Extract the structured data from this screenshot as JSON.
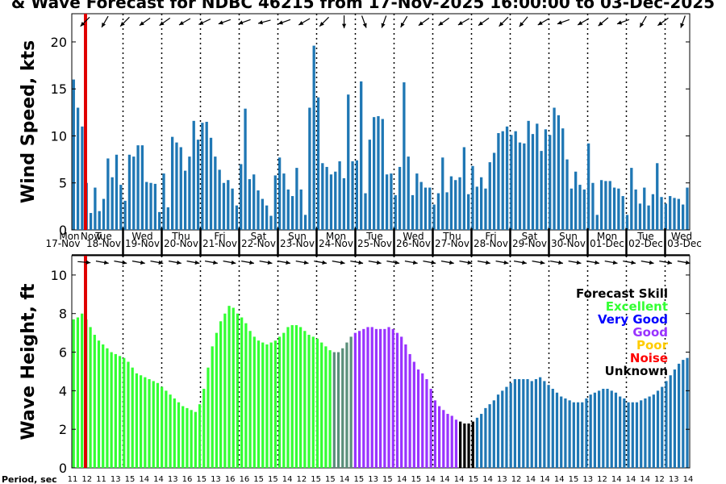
{
  "chart_data": {
    "title": "& Wave Forecast for NDBC 46215 from 17-Nov-2025 16:00:00 to 03-Dec-2025",
    "colors": {
      "wind_bar": "#1f77b4",
      "now_line": "#e00000",
      "now_text": "#e00000",
      "excellent": "#33ff33",
      "very_good": "#0000ff",
      "good": "#9933ff",
      "poor": "#ffcc00",
      "noise": "#ff0000",
      "unknown": "#000000",
      "transition": "#5a8f7a"
    },
    "panels": [
      {
        "type": "bar",
        "ylabel": "Wind Speed, kts",
        "ylim": [
          0,
          23
        ],
        "yticks": [
          "0",
          "5",
          "10",
          "15",
          "20"
        ],
        "values": [
          16.0,
          13.0,
          11.0,
          5.0,
          1.8,
          4.5,
          2.0,
          3.3,
          7.6,
          5.6,
          8.0,
          4.8,
          3.1,
          8.0,
          7.8,
          9.0,
          9.0,
          5.1,
          5.0,
          4.9,
          1.9,
          6.0,
          2.4,
          9.9,
          9.3,
          8.8,
          6.3,
          7.8,
          11.6,
          9.6,
          11.4,
          11.5,
          9.8,
          7.8,
          6.4,
          5.0,
          5.3,
          4.4,
          2.6,
          7.0,
          12.9,
          5.4,
          5.9,
          4.2,
          3.3,
          2.6,
          1.5,
          5.8,
          7.7,
          6.0,
          4.3,
          3.6,
          6.6,
          4.3,
          1.6,
          13.0,
          19.6,
          14.1,
          7.1,
          6.7,
          5.9,
          6.2,
          7.3,
          5.5,
          14.4,
          7.3,
          7.4,
          15.8,
          3.9,
          9.6,
          12.0,
          12.1,
          11.8,
          5.9,
          6.0,
          3.7,
          6.7,
          15.7,
          7.8,
          3.7,
          6.0,
          5.1,
          4.5,
          4.5,
          2.7,
          3.9,
          7.7,
          4.0,
          5.7,
          5.3,
          5.6,
          8.8,
          3.8,
          6.8,
          4.6,
          5.6,
          4.4,
          7.2,
          8.2,
          10.3,
          10.5,
          11.0,
          10.1,
          10.5,
          9.3,
          9.2,
          11.6,
          10.2,
          11.3,
          8.4,
          10.7,
          10.1,
          13.0,
          12.2,
          10.8,
          7.5,
          4.4,
          6.2,
          4.8,
          4.3,
          9.2,
          5.0,
          1.6,
          5.3,
          5.2,
          5.2,
          4.5,
          4.4,
          3.6,
          1.6,
          6.6,
          4.3,
          2.8,
          4.5,
          2.6,
          3.8,
          7.1,
          3.5,
          2.8,
          3.6,
          3.4,
          3.3,
          2.7,
          4.5
        ]
      },
      {
        "type": "bar",
        "ylabel": "Wave Height, ft",
        "ylim": [
          0,
          11
        ],
        "yticks": [
          "0",
          "2",
          "4",
          "6",
          "8",
          "10"
        ],
        "values": [
          7.7,
          7.8,
          8.0,
          7.7,
          7.3,
          6.9,
          6.6,
          6.4,
          6.2,
          6.0,
          5.9,
          5.8,
          5.7,
          5.5,
          5.2,
          4.9,
          4.8,
          4.7,
          4.6,
          4.5,
          4.4,
          4.2,
          4.0,
          3.8,
          3.6,
          3.4,
          3.2,
          3.1,
          3.0,
          2.9,
          3.3,
          4.1,
          5.2,
          6.3,
          7.0,
          7.6,
          8.0,
          8.4,
          8.3,
          8.0,
          7.8,
          7.5,
          7.1,
          6.8,
          6.6,
          6.5,
          6.4,
          6.5,
          6.6,
          6.8,
          7.0,
          7.3,
          7.4,
          7.4,
          7.3,
          7.1,
          6.9,
          6.8,
          6.7,
          6.5,
          6.3,
          6.1,
          6.0,
          6.0,
          6.2,
          6.5,
          6.8,
          7.0,
          7.1,
          7.2,
          7.3,
          7.3,
          7.2,
          7.2,
          7.2,
          7.3,
          7.2,
          7.0,
          6.8,
          6.4,
          5.9,
          5.5,
          5.1,
          4.9,
          4.6,
          4.1,
          3.5,
          3.2,
          3.0,
          2.8,
          2.7,
          2.5,
          2.4,
          2.3,
          2.3,
          2.4,
          2.6,
          2.8,
          3.1,
          3.3,
          3.5,
          3.8,
          4.0,
          4.2,
          4.4,
          4.6,
          4.6,
          4.6,
          4.6,
          4.5,
          4.6,
          4.7,
          4.5,
          4.3,
          4.1,
          3.9,
          3.7,
          3.6,
          3.5,
          3.4,
          3.4,
          3.4,
          3.6,
          3.8,
          3.9,
          4.0,
          4.1,
          4.1,
          4.0,
          3.9,
          3.7,
          3.6,
          3.4,
          3.4,
          3.4,
          3.5,
          3.6,
          3.7,
          3.8,
          4.0,
          4.2,
          4.5,
          4.8,
          5.1,
          5.4,
          5.6,
          5.7
        ],
        "quality": [
          "e",
          "e",
          "e",
          "e",
          "e",
          "e",
          "e",
          "e",
          "e",
          "e",
          "e",
          "e",
          "e",
          "e",
          "e",
          "e",
          "e",
          "e",
          "e",
          "e",
          "e",
          "e",
          "e",
          "e",
          "e",
          "e",
          "e",
          "e",
          "e",
          "e",
          "e",
          "e",
          "e",
          "e",
          "e",
          "e",
          "e",
          "e",
          "e",
          "e",
          "e",
          "e",
          "e",
          "e",
          "e",
          "e",
          "e",
          "e",
          "e",
          "e",
          "e",
          "e",
          "e",
          "e",
          "e",
          "e",
          "e",
          "e",
          "e",
          "e",
          "e",
          "e",
          "t",
          "t",
          "t",
          "t",
          "t",
          "g",
          "g",
          "g",
          "g",
          "g",
          "g",
          "g",
          "g",
          "g",
          "g",
          "g",
          "g",
          "g",
          "g",
          "g",
          "g",
          "g",
          "g",
          "g",
          "g",
          "g",
          "g",
          "g",
          "g",
          "g",
          "u",
          "u",
          "u",
          "u",
          "b",
          "b",
          "b",
          "b",
          "b",
          "b",
          "b",
          "b",
          "b",
          "b",
          "b",
          "b",
          "b",
          "b",
          "b",
          "b",
          "b",
          "b",
          "b",
          "b",
          "b",
          "b",
          "b",
          "b",
          "b",
          "b",
          "b",
          "b",
          "b",
          "b",
          "b",
          "b",
          "b",
          "b",
          "b",
          "b",
          "b",
          "b",
          "b",
          "b",
          "b",
          "b",
          "b",
          "b",
          "b",
          "b",
          "b",
          "b",
          "b",
          "b",
          "b",
          "b"
        ]
      }
    ],
    "x_axis": {
      "day_names": [
        "Mon",
        "Tue",
        "Wed",
        "Thu",
        "Fri",
        "Sat",
        "Sun",
        "Mon",
        "Tue",
        "Wed",
        "Thu",
        "Fri",
        "Sat",
        "Sun",
        "Mon",
        "Tue",
        "Wed"
      ],
      "dates": [
        "17-Nov",
        "18-Nov",
        "19-Nov",
        "20-Nov",
        "21-Nov",
        "22-Nov",
        "23-Nov",
        "24-Nov",
        "25-Nov",
        "26-Nov",
        "27-Nov",
        "28-Nov",
        "29-Nov",
        "30-Nov",
        "01-Dec",
        "02-Dec",
        "03-Dec"
      ],
      "now_label": "Now"
    },
    "wind_arrow_angles": [
      135,
      120,
      135,
      145,
      145,
      150,
      155,
      160,
      160,
      165,
      160,
      150,
      135,
      90,
      70,
      110,
      120,
      145,
      145,
      150,
      145,
      135,
      130,
      150,
      160,
      150,
      140,
      160,
      120,
      145,
      110
    ],
    "wave_arrow_angles": [
      5,
      10,
      10,
      10,
      10,
      10,
      10,
      10,
      10,
      10,
      10,
      10,
      10,
      10,
      10,
      10,
      10,
      10,
      10,
      10,
      10,
      10,
      10,
      10,
      10,
      10,
      10,
      10,
      10,
      10,
      10,
      10,
      10,
      10
    ],
    "period_label": "Period, sec",
    "periods": [
      "11",
      "12",
      "11",
      "13",
      "15",
      "14",
      "14",
      "13",
      "16",
      "15",
      "13",
      "16",
      "16",
      "15",
      "15",
      "14",
      "12",
      "15",
      "15",
      "14",
      "15",
      "13",
      "15",
      "14",
      "15",
      "14",
      "14",
      "14",
      "15",
      "14",
      "13",
      "12",
      "14",
      "14",
      "14",
      "15",
      "13",
      "12",
      "14",
      "14",
      "14",
      "12",
      "13",
      "14"
    ],
    "legend": {
      "title": "Forecast Skill",
      "items": [
        {
          "label": "Excellent",
          "color": "#33ff33"
        },
        {
          "label": "Very Good",
          "color": "#0000ff"
        },
        {
          "label": "Good",
          "color": "#9933ff"
        },
        {
          "label": "Poor",
          "color": "#ffcc00"
        },
        {
          "label": "Noise",
          "color": "#ff0000"
        },
        {
          "label": "Unknown",
          "color": "#000000"
        }
      ]
    }
  }
}
